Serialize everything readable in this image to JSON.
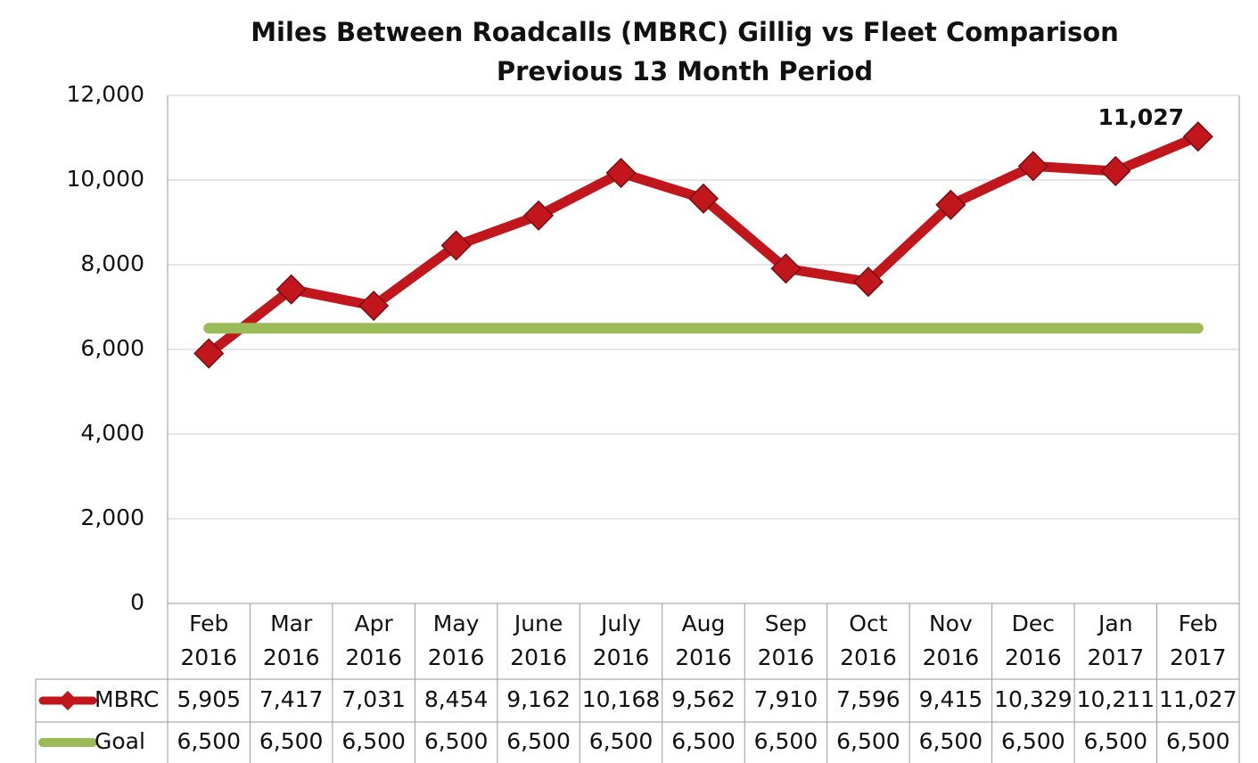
{
  "chart_data": {
    "type": "line",
    "title": "Miles Between Roadcalls (MBRC) Gillig vs Fleet Comparison",
    "subtitle": "Previous 13 Month Period",
    "categories": [
      "Feb 2016",
      "Mar 2016",
      "Apr 2016",
      "May 2016",
      "June 2016",
      "July 2016",
      "Aug 2016",
      "Sep 2016",
      "Oct 2016",
      "Nov 2016",
      "Dec 2016",
      "Jan 2017",
      "Feb 2017"
    ],
    "series": [
      {
        "name": "MBRC",
        "color": "#c0161c",
        "values": [
          5905,
          7417,
          7031,
          8454,
          9162,
          10168,
          9562,
          7910,
          7596,
          9415,
          10329,
          10211,
          11027
        ],
        "value_labels": [
          "5,905",
          "7,417",
          "7,031",
          "8,454",
          "9,162",
          "10,168",
          "9,562",
          "7,910",
          "7,596",
          "9,415",
          "10,329",
          "10,211",
          "11,027"
        ]
      },
      {
        "name": "Goal",
        "color": "#9bbb59",
        "values": [
          6500,
          6500,
          6500,
          6500,
          6500,
          6500,
          6500,
          6500,
          6500,
          6500,
          6500,
          6500,
          6500
        ],
        "value_labels": [
          "6,500",
          "6,500",
          "6,500",
          "6,500",
          "6,500",
          "6,500",
          "6,500",
          "6,500",
          "6,500",
          "6,500",
          "6,500",
          "6,500",
          "6,500"
        ]
      }
    ],
    "ylim": [
      0,
      12000
    ],
    "yticks": [
      0,
      {
        "value": 2000,
        "label": "2,000"
      },
      {
        "value": 4000,
        "label": "4,000"
      },
      {
        "value": 6000,
        "label": "6,000"
      },
      {
        "value": 8000,
        "label": "8,000"
      },
      {
        "value": 10000,
        "label": "10,000"
      },
      {
        "value": 12000,
        "label": "12,000"
      }
    ],
    "grid": true
  }
}
